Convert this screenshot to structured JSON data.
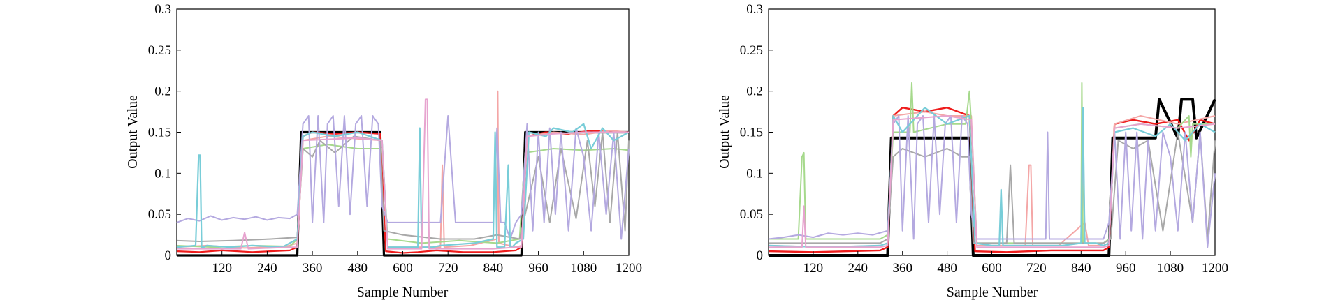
{
  "figure": {
    "panels": [
      {
        "xlabel": "Sample Number",
        "ylabel": "Output Value"
      },
      {
        "xlabel": "Sample Number",
        "ylabel": "Output Value"
      }
    ]
  },
  "chart_data": [
    {
      "type": "line",
      "title": "",
      "xlabel": "Sample Number",
      "ylabel": "Output Value",
      "xlim": [
        0,
        1200
      ],
      "ylim": [
        0,
        0.3
      ],
      "xticks": [
        120,
        240,
        360,
        480,
        600,
        720,
        840,
        960,
        1080,
        1200
      ],
      "yticks": [
        0,
        0.05,
        0.1,
        0.15,
        0.2,
        0.25,
        0.3
      ],
      "ytick_labels": [
        "0",
        "0.05",
        "0.1",
        "0.15",
        "0.2",
        "0.25",
        "0.3"
      ],
      "grid": false,
      "legend": "none",
      "series": [
        {
          "color": "#000000",
          "width": 3.2,
          "x": [
            0,
            320,
            330,
            540,
            550,
            915,
            925,
            1200
          ],
          "y": [
            0.0,
            0.0,
            0.15,
            0.15,
            0.0,
            0.0,
            0.15,
            0.15
          ]
        },
        {
          "color": "#ee1c1c",
          "width": 2.2,
          "x": [
            0,
            60,
            120,
            200,
            300,
            320,
            335,
            360,
            420,
            480,
            540,
            555,
            600,
            640,
            690,
            760,
            840,
            900,
            915,
            930,
            980,
            1040,
            1100,
            1160,
            1200
          ],
          "y": [
            0.005,
            0.004,
            0.006,
            0.004,
            0.006,
            0.01,
            0.145,
            0.15,
            0.148,
            0.15,
            0.148,
            0.005,
            0.003,
            0.004,
            0.006,
            0.004,
            0.004,
            0.006,
            0.01,
            0.145,
            0.15,
            0.148,
            0.152,
            0.15,
            0.15
          ]
        },
        {
          "color": "#f4a6a6",
          "width": 2.0,
          "x": [
            0,
            80,
            180,
            290,
            320,
            335,
            400,
            480,
            545,
            560,
            640,
            700,
            705,
            710,
            780,
            850,
            852,
            855,
            900,
            915,
            930,
            1000,
            1080,
            1150,
            1200
          ],
          "y": [
            0.01,
            0.012,
            0.009,
            0.011,
            0.015,
            0.14,
            0.145,
            0.142,
            0.14,
            0.01,
            0.01,
            0.01,
            0.11,
            0.01,
            0.012,
            0.02,
            0.2,
            0.015,
            0.01,
            0.012,
            0.145,
            0.15,
            0.147,
            0.152,
            0.15
          ]
        },
        {
          "color": "#a6d98c",
          "width": 2.0,
          "x": [
            0,
            100,
            200,
            300,
            320,
            335,
            400,
            480,
            545,
            560,
            650,
            750,
            850,
            910,
            925,
            1000,
            1080,
            1160,
            1200
          ],
          "y": [
            0.012,
            0.01,
            0.012,
            0.011,
            0.02,
            0.13,
            0.135,
            0.13,
            0.13,
            0.02,
            0.015,
            0.018,
            0.015,
            0.02,
            0.125,
            0.13,
            0.128,
            0.13,
            0.128
          ]
        },
        {
          "color": "#a8a8a8",
          "width": 2.0,
          "x": [
            0,
            60,
            150,
            250,
            320,
            335,
            360,
            380,
            420,
            470,
            540,
            550,
            600,
            700,
            790,
            850,
            910,
            920,
            960,
            990,
            1020,
            1060,
            1090,
            1110,
            1130,
            1150,
            1170,
            1190,
            1200
          ],
          "y": [
            0.018,
            0.017,
            0.018,
            0.02,
            0.022,
            0.13,
            0.12,
            0.14,
            0.125,
            0.145,
            0.14,
            0.03,
            0.025,
            0.02,
            0.02,
            0.025,
            0.02,
            0.04,
            0.12,
            0.04,
            0.13,
            0.045,
            0.14,
            0.06,
            0.15,
            0.04,
            0.15,
            0.03,
            0.14
          ]
        },
        {
          "color": "#b4a9e0",
          "width": 2.0,
          "x": [
            0,
            30,
            60,
            90,
            120,
            150,
            180,
            210,
            240,
            270,
            300,
            320,
            335,
            350,
            360,
            375,
            390,
            400,
            415,
            430,
            445,
            460,
            475,
            490,
            505,
            520,
            535,
            545,
            560,
            640,
            700,
            720,
            740,
            760,
            840,
            850,
            860,
            870,
            885,
            900,
            915,
            930,
            945,
            960,
            975,
            990,
            1005,
            1020,
            1040,
            1060,
            1080,
            1100,
            1120,
            1140,
            1160,
            1180,
            1200
          ],
          "y": [
            0.04,
            0.045,
            0.042,
            0.048,
            0.043,
            0.046,
            0.044,
            0.047,
            0.043,
            0.046,
            0.045,
            0.05,
            0.16,
            0.17,
            0.04,
            0.17,
            0.04,
            0.16,
            0.17,
            0.06,
            0.17,
            0.05,
            0.16,
            0.17,
            0.06,
            0.17,
            0.16,
            0.06,
            0.04,
            0.04,
            0.04,
            0.17,
            0.04,
            0.04,
            0.04,
            0.155,
            0.04,
            0.04,
            0.02,
            0.04,
            0.05,
            0.16,
            0.03,
            0.15,
            0.04,
            0.155,
            0.05,
            0.15,
            0.03,
            0.155,
            0.12,
            0.03,
            0.15,
            0.05,
            0.15,
            0.02,
            0.13
          ]
        },
        {
          "color": "#78cdd8",
          "width": 2.2,
          "x": [
            0,
            50,
            58,
            62,
            66,
            72,
            80,
            140,
            200,
            280,
            320,
            335,
            360,
            420,
            480,
            545,
            560,
            630,
            640,
            645,
            650,
            680,
            700,
            790,
            840,
            845,
            850,
            870,
            880,
            885,
            890,
            900,
            920,
            935,
            980,
            1000,
            1050,
            1080,
            1100,
            1130,
            1160,
            1200
          ],
          "y": [
            0.01,
            0.012,
            0.122,
            0.122,
            0.01,
            0.01,
            0.012,
            0.01,
            0.012,
            0.01,
            0.02,
            0.145,
            0.15,
            0.145,
            0.15,
            0.14,
            0.01,
            0.01,
            0.01,
            0.155,
            0.01,
            0.01,
            0.012,
            0.015,
            0.02,
            0.15,
            0.01,
            0.01,
            0.11,
            0.01,
            0.01,
            0.015,
            0.02,
            0.15,
            0.145,
            0.155,
            0.15,
            0.16,
            0.13,
            0.155,
            0.14,
            0.15
          ]
        },
        {
          "color": "#e7a4cf",
          "width": 2.0,
          "x": [
            0,
            170,
            180,
            190,
            300,
            320,
            335,
            480,
            545,
            560,
            650,
            660,
            665,
            670,
            700,
            800,
            840,
            900,
            915,
            930,
            1000,
            1080,
            1200
          ],
          "y": [
            0.008,
            0.008,
            0.028,
            0.008,
            0.01,
            0.01,
            0.14,
            0.143,
            0.14,
            0.008,
            0.008,
            0.19,
            0.19,
            0.008,
            0.008,
            0.008,
            0.008,
            0.01,
            0.01,
            0.145,
            0.148,
            0.15,
            0.15
          ]
        }
      ]
    },
    {
      "type": "line",
      "title": "",
      "xlabel": "Sample Number",
      "ylabel": "Output Value",
      "xlim": [
        0,
        1200
      ],
      "ylim": [
        0,
        0.3
      ],
      "xticks": [
        120,
        240,
        360,
        480,
        600,
        720,
        840,
        960,
        1080,
        1200
      ],
      "yticks": [
        0,
        0.05,
        0.1,
        0.15,
        0.2,
        0.25,
        0.3
      ],
      "ytick_labels": [
        "0",
        "0.05",
        "0.1",
        "0.15",
        "0.2",
        "0.25",
        "0.3"
      ],
      "grid": false,
      "legend": "none",
      "series": [
        {
          "color": "#000000",
          "width": 4.0,
          "x": [
            0,
            320,
            330,
            540,
            550,
            915,
            925,
            1040,
            1050,
            1100,
            1110,
            1140,
            1150,
            1200
          ],
          "y": [
            0.0,
            0.0,
            0.143,
            0.143,
            0.0,
            0.0,
            0.143,
            0.143,
            0.19,
            0.143,
            0.19,
            0.19,
            0.143,
            0.19
          ]
        },
        {
          "color": "#ee1c1c",
          "width": 2.4,
          "x": [
            0,
            120,
            300,
            320,
            335,
            360,
            420,
            480,
            540,
            555,
            640,
            760,
            900,
            915,
            930,
            980,
            1040,
            1100,
            1130,
            1160,
            1200
          ],
          "y": [
            0.005,
            0.004,
            0.006,
            0.01,
            0.17,
            0.18,
            0.175,
            0.18,
            0.17,
            0.005,
            0.004,
            0.006,
            0.006,
            0.01,
            0.16,
            0.165,
            0.16,
            0.165,
            0.14,
            0.165,
            0.16
          ]
        },
        {
          "color": "#f4a6a6",
          "width": 2.0,
          "x": [
            0,
            150,
            300,
            320,
            335,
            420,
            480,
            545,
            560,
            690,
            700,
            705,
            710,
            780,
            850,
            860,
            900,
            915,
            930,
            1000,
            1100,
            1200
          ],
          "y": [
            0.012,
            0.01,
            0.012,
            0.015,
            0.17,
            0.175,
            0.17,
            0.17,
            0.012,
            0.012,
            0.11,
            0.11,
            0.012,
            0.012,
            0.04,
            0.012,
            0.012,
            0.015,
            0.16,
            0.17,
            0.16,
            0.17
          ]
        },
        {
          "color": "#a6d98c",
          "width": 2.0,
          "x": [
            0,
            80,
            90,
            95,
            100,
            150,
            300,
            320,
            335,
            380,
            385,
            390,
            480,
            530,
            540,
            545,
            560,
            700,
            840,
            842,
            845,
            900,
            915,
            930,
            1000,
            1100,
            1130,
            1135,
            1140,
            1200
          ],
          "y": [
            0.02,
            0.02,
            0.12,
            0.125,
            0.02,
            0.02,
            0.02,
            0.025,
            0.15,
            0.15,
            0.21,
            0.15,
            0.16,
            0.16,
            0.2,
            0.16,
            0.015,
            0.015,
            0.015,
            0.21,
            0.015,
            0.015,
            0.02,
            0.155,
            0.16,
            0.155,
            0.17,
            0.12,
            0.16,
            0.16
          ]
        },
        {
          "color": "#a8a8a8",
          "width": 2.0,
          "x": [
            0,
            150,
            300,
            320,
            335,
            360,
            420,
            480,
            520,
            540,
            550,
            640,
            650,
            660,
            700,
            800,
            900,
            920,
            940,
            980,
            1020,
            1060,
            1100,
            1140,
            1160,
            1180,
            1200
          ],
          "y": [
            0.015,
            0.015,
            0.015,
            0.02,
            0.12,
            0.13,
            0.12,
            0.13,
            0.12,
            0.12,
            0.015,
            0.015,
            0.11,
            0.015,
            0.015,
            0.015,
            0.015,
            0.02,
            0.14,
            0.13,
            0.14,
            0.03,
            0.15,
            0.04,
            0.15,
            0.02,
            0.14
          ]
        },
        {
          "color": "#b4a9e0",
          "width": 2.0,
          "x": [
            0,
            40,
            80,
            120,
            160,
            200,
            240,
            280,
            320,
            335,
            350,
            360,
            375,
            390,
            400,
            415,
            430,
            445,
            460,
            475,
            490,
            505,
            520,
            535,
            545,
            560,
            700,
            745,
            750,
            755,
            800,
            840,
            845,
            850,
            900,
            915,
            930,
            945,
            960,
            975,
            990,
            1005,
            1020,
            1040,
            1060,
            1080,
            1100,
            1120,
            1140,
            1160,
            1180,
            1200
          ],
          "y": [
            0.02,
            0.022,
            0.025,
            0.022,
            0.027,
            0.025,
            0.027,
            0.025,
            0.03,
            0.16,
            0.17,
            0.03,
            0.17,
            0.02,
            0.16,
            0.17,
            0.04,
            0.17,
            0.05,
            0.16,
            0.17,
            0.04,
            0.17,
            0.16,
            0.05,
            0.02,
            0.02,
            0.02,
            0.15,
            0.02,
            0.02,
            0.02,
            0.15,
            0.02,
            0.02,
            0.04,
            0.15,
            0.02,
            0.15,
            0.03,
            0.15,
            0.02,
            0.14,
            0.03,
            0.15,
            0.12,
            0.03,
            0.15,
            0.04,
            0.15,
            0.01,
            0.1
          ]
        },
        {
          "color": "#78cdd8",
          "width": 2.2,
          "x": [
            0,
            150,
            300,
            320,
            335,
            360,
            420,
            480,
            540,
            555,
            600,
            620,
            625,
            630,
            640,
            700,
            790,
            840,
            845,
            850,
            880,
            900,
            915,
            930,
            980,
            1040,
            1080,
            1120,
            1160,
            1200
          ],
          "y": [
            0.012,
            0.01,
            0.012,
            0.015,
            0.17,
            0.15,
            0.18,
            0.16,
            0.17,
            0.015,
            0.012,
            0.012,
            0.08,
            0.012,
            0.012,
            0.012,
            0.012,
            0.015,
            0.18,
            0.015,
            0.015,
            0.012,
            0.015,
            0.15,
            0.155,
            0.145,
            0.16,
            0.14,
            0.16,
            0.15
          ]
        },
        {
          "color": "#e7a4cf",
          "width": 2.0,
          "x": [
            0,
            90,
            95,
            100,
            300,
            320,
            335,
            480,
            545,
            560,
            700,
            840,
            900,
            915,
            930,
            1000,
            1100,
            1200
          ],
          "y": [
            0.01,
            0.01,
            0.06,
            0.01,
            0.01,
            0.012,
            0.165,
            0.17,
            0.165,
            0.01,
            0.01,
            0.01,
            0.01,
            0.012,
            0.155,
            0.16,
            0.155,
            0.16
          ]
        }
      ]
    }
  ]
}
